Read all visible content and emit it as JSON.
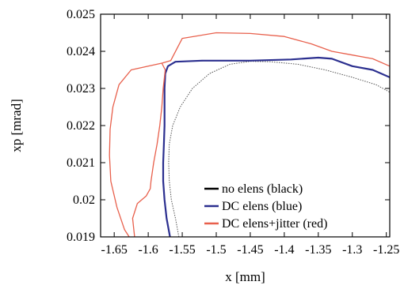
{
  "chart_data": {
    "type": "line",
    "xlabel": "x [mm]",
    "ylabel": "xp [mrad]",
    "xlim": [
      -1.67,
      -1.245
    ],
    "ylim": [
      0.019,
      0.025
    ],
    "xticks": [
      -1.65,
      -1.6,
      -1.55,
      -1.5,
      -1.45,
      -1.4,
      -1.35,
      -1.3,
      -1.25
    ],
    "xtick_labels": [
      "-1.65",
      "-1.6",
      "-1.55",
      "-1.5",
      "-1.45",
      "-1.4",
      "-1.35",
      "-1.3",
      "-1.25"
    ],
    "yticks": [
      0.019,
      0.02,
      0.021,
      0.022,
      0.023,
      0.024,
      0.025
    ],
    "ytick_labels": [
      "0.019",
      "0.02",
      "0.021",
      "0.022",
      "0.023",
      "0.024",
      "0.025"
    ],
    "grid": false,
    "legend_position": "bottom-right",
    "series": [
      {
        "name": "no elens (black)",
        "color": "#555555",
        "style": "dotted",
        "points": [
          [
            -1.555,
            0.019
          ],
          [
            -1.56,
            0.0195
          ],
          [
            -1.566,
            0.02
          ],
          [
            -1.569,
            0.0205
          ],
          [
            -1.57,
            0.021
          ],
          [
            -1.569,
            0.0215
          ],
          [
            -1.564,
            0.022
          ],
          [
            -1.553,
            0.0225
          ],
          [
            -1.535,
            0.023
          ],
          [
            -1.51,
            0.0234
          ],
          [
            -1.48,
            0.02365
          ],
          [
            -1.45,
            0.02373
          ],
          [
            -1.42,
            0.02372
          ],
          [
            -1.38,
            0.02365
          ],
          [
            -1.34,
            0.0235
          ],
          [
            -1.3,
            0.0233
          ],
          [
            -1.265,
            0.0231
          ],
          [
            -1.245,
            0.0229
          ]
        ]
      },
      {
        "name": "DC elens (blue)",
        "color": "#2b2f8f",
        "style": "solid",
        "points": [
          [
            -1.568,
            0.019
          ],
          [
            -1.573,
            0.0195
          ],
          [
            -1.576,
            0.02
          ],
          [
            -1.578,
            0.0205
          ],
          [
            -1.578,
            0.021
          ],
          [
            -1.577,
            0.0215
          ],
          [
            -1.576,
            0.022
          ],
          [
            -1.576,
            0.0225
          ],
          [
            -1.576,
            0.023
          ],
          [
            -1.575,
            0.0234
          ],
          [
            -1.571,
            0.0236
          ],
          [
            -1.56,
            0.02372
          ],
          [
            -1.52,
            0.02375
          ],
          [
            -1.45,
            0.02375
          ],
          [
            -1.39,
            0.02378
          ],
          [
            -1.35,
            0.02383
          ],
          [
            -1.33,
            0.0238
          ],
          [
            -1.3,
            0.0236
          ],
          [
            -1.27,
            0.0235
          ],
          [
            -1.245,
            0.0233
          ]
        ]
      },
      {
        "name": "DC elens+jitter (red)",
        "color": "#e8604c",
        "style": "solid",
        "points": [
          [
            -1.62,
            0.019
          ],
          [
            -1.623,
            0.0195
          ],
          [
            -1.616,
            0.0199
          ],
          [
            -1.603,
            0.0201
          ],
          [
            -1.597,
            0.0203
          ],
          [
            -1.596,
            0.0205
          ],
          [
            -1.592,
            0.021
          ],
          [
            -1.587,
            0.0215
          ],
          [
            -1.583,
            0.022
          ],
          [
            -1.58,
            0.0225
          ],
          [
            -1.578,
            0.023
          ],
          [
            -1.575,
            0.0235
          ],
          [
            -1.58,
            0.02368
          ],
          [
            -1.567,
            0.02375
          ],
          [
            -1.55,
            0.02435
          ],
          [
            -1.5,
            0.0245
          ],
          [
            -1.45,
            0.02448
          ],
          [
            -1.4,
            0.0244
          ],
          [
            -1.36,
            0.0242
          ],
          [
            -1.33,
            0.024
          ],
          [
            -1.3,
            0.0239
          ],
          [
            -1.27,
            0.0238
          ],
          [
            -1.245,
            0.0236
          ]
        ]
      },
      {
        "name": "",
        "color": "#e8604c",
        "style": "solid",
        "points": [
          [
            -1.58,
            0.02368
          ],
          [
            -1.6,
            0.0236
          ],
          [
            -1.625,
            0.0235
          ],
          [
            -1.643,
            0.0231
          ],
          [
            -1.652,
            0.0225
          ],
          [
            -1.656,
            0.0219
          ],
          [
            -1.657,
            0.0212
          ],
          [
            -1.655,
            0.0205
          ],
          [
            -1.646,
            0.0198
          ],
          [
            -1.635,
            0.0192
          ],
          [
            -1.628,
            0.019
          ]
        ]
      }
    ]
  }
}
